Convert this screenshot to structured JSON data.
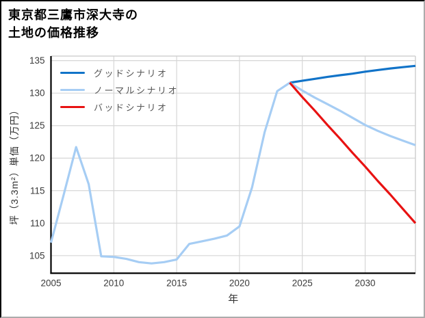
{
  "figure": {
    "title_line1": "東京都三鷹市深大寺の",
    "title_line2": "土地の価格推移"
  },
  "chart_data": {
    "type": "line",
    "title": "東京都三鷹市深大寺の土地の価格推移",
    "xlabel": "年",
    "ylabel": "坪（3.3m²）単価（万円）",
    "xlim": [
      2005,
      2034
    ],
    "ylim": [
      102.3,
      135.7
    ],
    "xticks": [
      2005,
      2010,
      2015,
      2020,
      2025,
      2030
    ],
    "yticks": [
      105,
      110,
      115,
      120,
      125,
      130,
      135
    ],
    "grid": true,
    "legend_position": "upper-left",
    "colors": {
      "grid": "#d6d6d6",
      "spine_main": "#000000",
      "spine_secondary": "#d0d0d0",
      "tick_text": "#3a3a3a",
      "axis_label_text": "#333333",
      "legend_text": "#555555",
      "background": "#ffffff"
    },
    "series": [
      {
        "name": "グッドシナリオ",
        "color": "#1173c8",
        "x": [
          2024,
          2025,
          2026,
          2027,
          2028,
          2029,
          2030,
          2031,
          2032,
          2033,
          2034
        ],
        "y": [
          131.6,
          131.9,
          132.2,
          132.5,
          132.75,
          133.0,
          133.3,
          133.55,
          133.8,
          134.0,
          134.2
        ]
      },
      {
        "name": "ノーマルシナリオ",
        "color": "#a6cdf4",
        "x": [
          2005,
          2006,
          2007,
          2008,
          2009,
          2010,
          2011,
          2012,
          2013,
          2014,
          2015,
          2016,
          2017,
          2018,
          2019,
          2020,
          2021,
          2022,
          2023,
          2024,
          2025,
          2026,
          2027,
          2028,
          2029,
          2030,
          2031,
          2032,
          2033,
          2034
        ],
        "y": [
          107.0,
          114.3,
          121.7,
          116.0,
          104.9,
          104.8,
          104.5,
          104.0,
          103.8,
          104.0,
          104.4,
          106.8,
          107.2,
          107.6,
          108.1,
          109.5,
          115.5,
          124.0,
          130.3,
          131.6,
          130.4,
          129.3,
          128.3,
          127.3,
          126.2,
          125.1,
          124.2,
          123.4,
          122.7,
          122.0
        ]
      },
      {
        "name": "バッドシナリオ",
        "color": "#e81212",
        "x": [
          2024,
          2025,
          2026,
          2027,
          2028,
          2029,
          2030,
          2031,
          2032,
          2033,
          2034
        ],
        "y": [
          131.6,
          129.4,
          127.3,
          125.1,
          123.0,
          120.8,
          118.7,
          116.5,
          114.4,
          112.2,
          110.0
        ]
      }
    ]
  }
}
